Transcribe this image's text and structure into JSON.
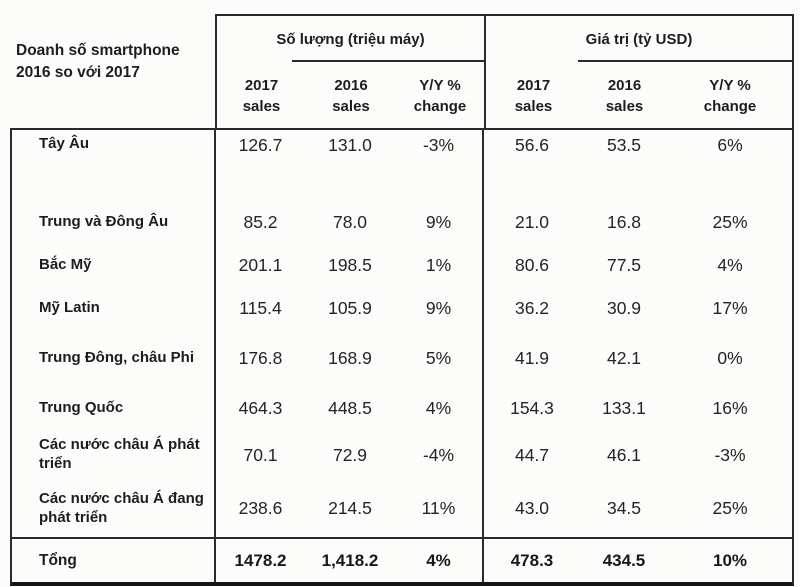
{
  "title": {
    "line1": "Doanh số smartphone",
    "line2": "2016 so với 2017"
  },
  "header": {
    "qty_group_label": "Số lượng (triệu máy)",
    "val_group_label": "Giá trị (tỷ USD)",
    "sub": [
      {
        "l1": "2017",
        "l2": "sales"
      },
      {
        "l1": "2016",
        "l2": "sales"
      },
      {
        "l1": "Y/Y %",
        "l2": "change"
      }
    ]
  },
  "rows": [
    {
      "region": "Tây Âu",
      "qty_2017": "126.7",
      "qty_2016": "131.0",
      "qty_yy": "-3%",
      "val_2017": "56.6",
      "val_2016": "53.5",
      "val_yy": "6%"
    },
    {
      "region": "Trung và Đông Âu",
      "qty_2017": "85.2",
      "qty_2016": "78.0",
      "qty_yy": "9%",
      "val_2017": "21.0",
      "val_2016": "16.8",
      "val_yy": "25%"
    },
    {
      "region": "Bắc Mỹ",
      "qty_2017": "201.1",
      "qty_2016": "198.5",
      "qty_yy": "1%",
      "val_2017": "80.6",
      "val_2016": "77.5",
      "val_yy": "4%"
    },
    {
      "region": "Mỹ Latin",
      "qty_2017": "115.4",
      "qty_2016": "105.9",
      "qty_yy": "9%",
      "val_2017": "36.2",
      "val_2016": "30.9",
      "val_yy": "17%"
    },
    {
      "region": "Trung Đông, châu Phi",
      "qty_2017": "176.8",
      "qty_2016": "168.9",
      "qty_yy": "5%",
      "val_2017": "41.9",
      "val_2016": "42.1",
      "val_yy": "0%"
    },
    {
      "region": "Trung Quốc",
      "qty_2017": "464.3",
      "qty_2016": "448.5",
      "qty_yy": "4%",
      "val_2017": "154.3",
      "val_2016": "133.1",
      "val_yy": "16%"
    },
    {
      "region": "Các nước châu Á phát triển",
      "qty_2017": "70.1",
      "qty_2016": "72.9",
      "qty_yy": "-4%",
      "val_2017": "44.7",
      "val_2016": "46.1",
      "val_yy": "-3%"
    },
    {
      "region": "Các nước châu Á đang phát triển",
      "qty_2017": "238.6",
      "qty_2016": "214.5",
      "qty_yy": "11%",
      "val_2017": "43.0",
      "val_2016": "34.5",
      "val_yy": "25%"
    }
  ],
  "totals": {
    "region": "Tổng",
    "qty_2017": "1478.2",
    "qty_2016": "1,418.2",
    "qty_yy": "4%",
    "val_2017": "478.3",
    "val_2016": "434.5",
    "val_yy": "10%"
  },
  "colors": {
    "ink": "#1d1d1d",
    "paper": "#fcfcfa",
    "border": "#2a2a2a"
  },
  "chart_data": {
    "type": "table",
    "title": "Doanh số smartphone 2016 so với 2017",
    "column_groups": [
      {
        "label": "Số lượng (triệu máy)",
        "columns": [
          "2017 sales",
          "2016 sales",
          "Y/Y % change"
        ]
      },
      {
        "label": "Giá trị (tỷ USD)",
        "columns": [
          "2017 sales",
          "2016 sales",
          "Y/Y % change"
        ]
      }
    ],
    "rows": [
      {
        "region": "Tây Âu",
        "qty": {
          "y2017": 126.7,
          "y2016": 131.0,
          "yy_change_pct": -3
        },
        "value": {
          "y2017": 56.6,
          "y2016": 53.5,
          "yy_change_pct": 6
        }
      },
      {
        "region": "Trung và Đông Âu",
        "qty": {
          "y2017": 85.2,
          "y2016": 78.0,
          "yy_change_pct": 9
        },
        "value": {
          "y2017": 21.0,
          "y2016": 16.8,
          "yy_change_pct": 25
        }
      },
      {
        "region": "Bắc Mỹ",
        "qty": {
          "y2017": 201.1,
          "y2016": 198.5,
          "yy_change_pct": 1
        },
        "value": {
          "y2017": 80.6,
          "y2016": 77.5,
          "yy_change_pct": 4
        }
      },
      {
        "region": "Mỹ Latin",
        "qty": {
          "y2017": 115.4,
          "y2016": 105.9,
          "yy_change_pct": 9
        },
        "value": {
          "y2017": 36.2,
          "y2016": 30.9,
          "yy_change_pct": 17
        }
      },
      {
        "region": "Trung Đông, châu Phi",
        "qty": {
          "y2017": 176.8,
          "y2016": 168.9,
          "yy_change_pct": 5
        },
        "value": {
          "y2017": 41.9,
          "y2016": 42.1,
          "yy_change_pct": 0
        }
      },
      {
        "region": "Trung Quốc",
        "qty": {
          "y2017": 464.3,
          "y2016": 448.5,
          "yy_change_pct": 4
        },
        "value": {
          "y2017": 154.3,
          "y2016": 133.1,
          "yy_change_pct": 16
        }
      },
      {
        "region": "Các nước châu Á phát triển",
        "qty": {
          "y2017": 70.1,
          "y2016": 72.9,
          "yy_change_pct": -4
        },
        "value": {
          "y2017": 44.7,
          "y2016": 46.1,
          "yy_change_pct": -3
        }
      },
      {
        "region": "Các nước châu Á đang phát triển",
        "qty": {
          "y2017": 238.6,
          "y2016": 214.5,
          "yy_change_pct": 11
        },
        "value": {
          "y2017": 43.0,
          "y2016": 34.5,
          "yy_change_pct": 25
        }
      }
    ],
    "total_row": {
      "region": "Tổng",
      "qty": {
        "y2017": 1478.2,
        "y2016": 1418.2,
        "yy_change_pct": 4
      },
      "value": {
        "y2017": 478.3,
        "y2016": 434.5,
        "yy_change_pct": 10
      }
    }
  }
}
